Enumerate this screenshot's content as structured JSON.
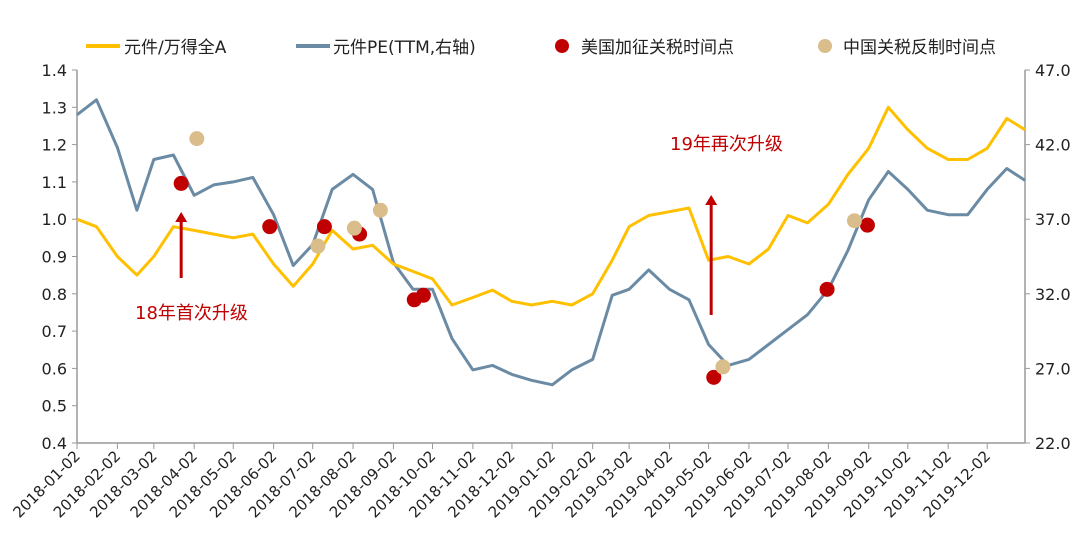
{
  "chart_data": {
    "type": "line",
    "title": "",
    "legend": {
      "placement": "top",
      "entries": [
        {
          "label": "元件/万得全A",
          "kind": "line",
          "color": "#FFC000"
        },
        {
          "label": "元件PE(TTM,右轴)",
          "kind": "line",
          "color": "#6B8BA4"
        },
        {
          "label": "美国加征关税时间点",
          "kind": "dot",
          "color": "#C00000"
        },
        {
          "label": "中国关税反制时间点",
          "kind": "dot",
          "color": "#D9BE8C"
        }
      ]
    },
    "left_axis": {
      "ylim": [
        0.4,
        1.4
      ],
      "ticks": [
        "0.4",
        "0.5",
        "0.6",
        "0.7",
        "0.8",
        "0.9",
        "1.0",
        "1.1",
        "1.2",
        "1.3",
        "1.4"
      ]
    },
    "right_axis": {
      "ylim": [
        22.0,
        47.0
      ],
      "ticks": [
        "22.0",
        "27.0",
        "32.0",
        "37.0",
        "42.0",
        "47.0"
      ]
    },
    "x_range": [
      "2018-01-02",
      "2019-12-31"
    ],
    "x_ticks": [
      "2018-01-02",
      "2018-02-02",
      "2018-03-02",
      "2018-04-02",
      "2018-05-02",
      "2018-06-02",
      "2018-07-02",
      "2018-08-02",
      "2018-09-02",
      "2018-10-02",
      "2018-11-02",
      "2018-12-02",
      "2019-01-02",
      "2019-02-02",
      "2019-03-02",
      "2019-04-02",
      "2019-05-02",
      "2019-06-02",
      "2019-07-02",
      "2019-08-02",
      "2019-09-02",
      "2019-10-02",
      "2019-11-02",
      "2019-12-02"
    ],
    "x": [
      "2018-01-02",
      "2018-01-17",
      "2018-02-02",
      "2018-02-17",
      "2018-03-02",
      "2018-03-17",
      "2018-04-02",
      "2018-04-17",
      "2018-05-02",
      "2018-05-17",
      "2018-06-02",
      "2018-06-17",
      "2018-07-02",
      "2018-07-17",
      "2018-08-02",
      "2018-08-17",
      "2018-09-02",
      "2018-09-17",
      "2018-10-02",
      "2018-10-17",
      "2018-11-02",
      "2018-11-17",
      "2018-12-02",
      "2018-12-17",
      "2019-01-02",
      "2019-01-17",
      "2019-02-02",
      "2019-02-17",
      "2019-03-02",
      "2019-03-17",
      "2019-04-02",
      "2019-04-17",
      "2019-05-02",
      "2019-05-17",
      "2019-06-02",
      "2019-06-17",
      "2019-07-02",
      "2019-07-17",
      "2019-08-02",
      "2019-08-17",
      "2019-09-02",
      "2019-09-17",
      "2019-10-02",
      "2019-10-17",
      "2019-11-02",
      "2019-11-17",
      "2019-12-02",
      "2019-12-17",
      "2019-12-31"
    ],
    "series": [
      {
        "name": "元件/万得全A",
        "axis": "left",
        "color": "#FFC000",
        "values": [
          1.0,
          0.98,
          0.9,
          0.85,
          0.9,
          0.98,
          0.97,
          0.96,
          0.95,
          0.96,
          0.88,
          0.82,
          0.88,
          0.97,
          0.92,
          0.93,
          0.88,
          0.86,
          0.84,
          0.77,
          0.79,
          0.81,
          0.78,
          0.77,
          0.78,
          0.77,
          0.8,
          0.89,
          0.98,
          1.01,
          1.02,
          1.03,
          0.89,
          0.9,
          0.88,
          0.92,
          1.01,
          0.99,
          1.04,
          1.12,
          1.19,
          1.3,
          1.24,
          1.19,
          1.16,
          1.16,
          1.19,
          1.27,
          1.24
        ]
      },
      {
        "name": "元件PE(TTM,右轴)",
        "axis": "right",
        "color": "#6B8BA4",
        "values": [
          44.0,
          45.0,
          41.8,
          37.6,
          41.0,
          41.3,
          38.6,
          39.3,
          39.5,
          39.8,
          37.3,
          33.9,
          35.3,
          39.0,
          40.0,
          39.0,
          34.1,
          32.3,
          32.3,
          29.0,
          26.9,
          27.2,
          26.6,
          26.2,
          25.9,
          26.9,
          27.6,
          31.9,
          32.3,
          33.6,
          32.3,
          31.6,
          28.6,
          27.2,
          27.6,
          28.6,
          29.6,
          30.6,
          32.3,
          34.9,
          38.3,
          40.2,
          39.0,
          37.6,
          37.3,
          37.3,
          39.0,
          40.4,
          39.6
        ]
      }
    ],
    "us_tariff_points": [
      {
        "date": "2018-03-23",
        "value": 39.4
      },
      {
        "date": "2018-05-30",
        "value": 36.5
      },
      {
        "date": "2018-07-11",
        "value": 36.5
      },
      {
        "date": "2018-08-07",
        "value": 36.0
      },
      {
        "date": "2018-09-18",
        "value": 31.6
      },
      {
        "date": "2018-09-25",
        "value": 31.9
      },
      {
        "date": "2019-05-06",
        "value": 26.4
      },
      {
        "date": "2019-08-01",
        "value": 32.3
      },
      {
        "date": "2019-09-01",
        "value": 36.6
      }
    ],
    "china_counter_points": [
      {
        "date": "2018-04-04",
        "value": 42.4
      },
      {
        "date": "2018-07-06",
        "value": 35.2
      },
      {
        "date": "2018-08-03",
        "value": 36.4
      },
      {
        "date": "2018-08-23",
        "value": 37.6
      },
      {
        "date": "2019-05-13",
        "value": 27.1
      },
      {
        "date": "2019-08-22",
        "value": 36.9
      }
    ],
    "annotations": [
      {
        "text": "18年首次升级",
        "date": "2018-03-23",
        "color": "#C00000"
      },
      {
        "text": "19年再次升级",
        "date": "2019-05-04",
        "color": "#C00000"
      }
    ]
  }
}
